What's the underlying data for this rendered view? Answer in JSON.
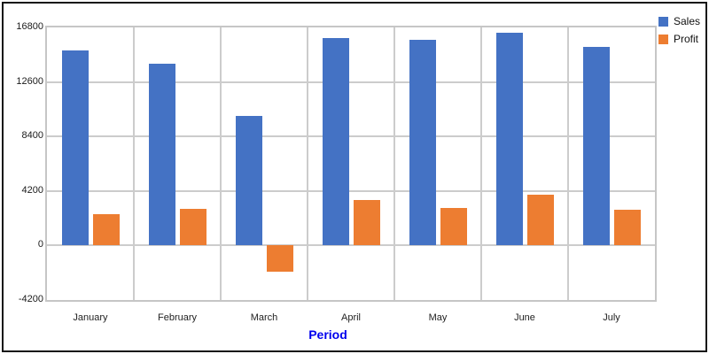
{
  "chart_data": {
    "type": "bar",
    "title": "",
    "categories": [
      "January",
      "February",
      "March",
      "April",
      "May",
      "June",
      "July"
    ],
    "series": [
      {
        "name": "Sales",
        "color": "#4472C4",
        "values": [
          15000,
          14000,
          10000,
          16000,
          15850,
          16400,
          15300
        ]
      },
      {
        "name": "Profit",
        "color": "#ED7D31",
        "values": [
          2400,
          2800,
          -2050,
          3500,
          2900,
          3900,
          2750
        ]
      }
    ],
    "xlabel": "Period",
    "ylabel": "",
    "ylim": [
      -4200,
      16800
    ],
    "ytick_interval": 4200,
    "yticks": [
      16800,
      12600,
      8400,
      4200,
      0,
      -4200
    ],
    "grid": true,
    "legend_position": "top-right"
  },
  "colors": {
    "gridline": "#cccccc",
    "plot_border": "#c6c6c6",
    "outer_frame": "#141414",
    "xlabel_text": "#0000ee",
    "tick_text": "#1a1a1a",
    "background": "#ffffff"
  }
}
